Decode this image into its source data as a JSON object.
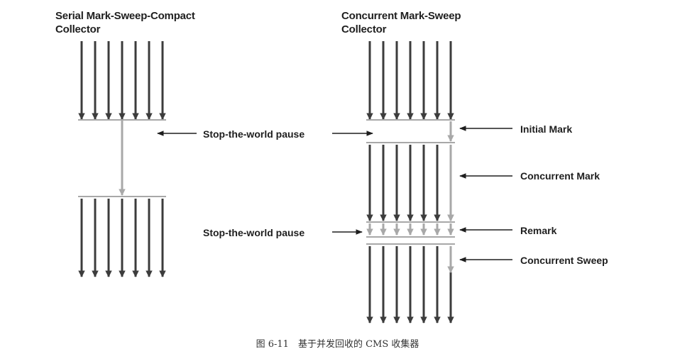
{
  "left": {
    "title_line1": "Serial Mark-Sweep-Compact",
    "title_line2": "Collector",
    "pause_label": "Stop-the-world pause"
  },
  "right": {
    "title_line1": "Concurrent Mark-Sweep",
    "title_line2": "Collector",
    "pause_label": "Stop-the-world pause",
    "phases": [
      "Initial Mark",
      "Concurrent Mark",
      "Remark",
      "Concurrent Sweep"
    ]
  },
  "caption": "图 6-11　基于并发回收的 CMS 收集器",
  "colors": {
    "app_thread": "#3c3c3c",
    "gc_thread": "#a8a8a8",
    "text": "#1e1e1e"
  }
}
